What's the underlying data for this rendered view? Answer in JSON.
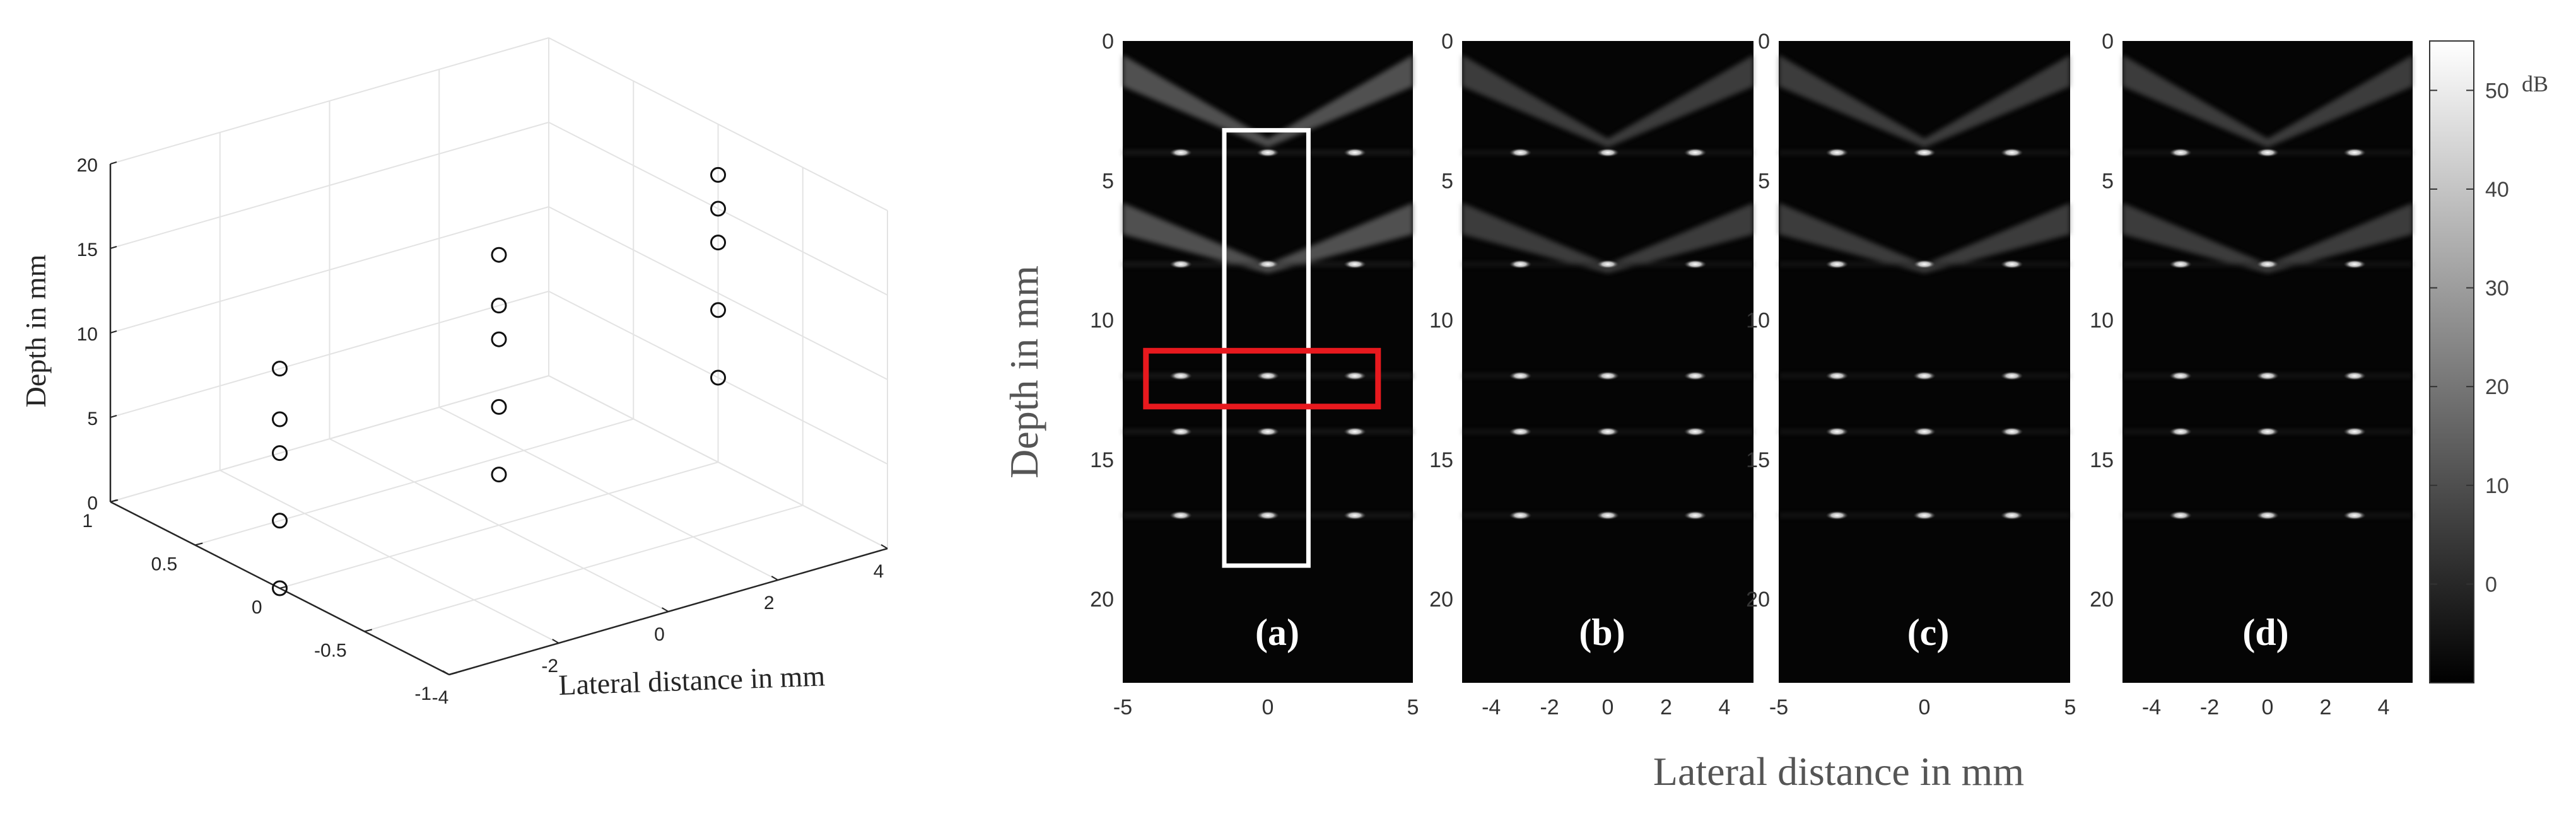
{
  "figure": {
    "scatter3d": {
      "type": "scatter",
      "zlabel": "Depth in mm",
      "xlabel": "Lateral distance in mm",
      "z_ticks": [
        "0",
        "5",
        "10",
        "15",
        "20"
      ],
      "y_ticks": [
        "1",
        "0.5",
        "0",
        "-0.5",
        "-1"
      ],
      "x_ticks": [
        "-4",
        "-2",
        "0",
        "2",
        "4"
      ],
      "xlim": [
        -4,
        4
      ],
      "ylim": [
        -1,
        1
      ],
      "zlim": [
        0,
        20
      ],
      "grid": true
    },
    "image_panels": {
      "shared_ylabel": "Depth in mm",
      "shared_xlabel": "Lateral distance in mm",
      "depth_ticks": [
        "0",
        "5",
        "10",
        "15",
        "20"
      ],
      "panels": [
        {
          "label": "(a)",
          "x_ticks": [
            "-5",
            "0",
            "5"
          ],
          "xlim": [
            -5,
            5
          ]
        },
        {
          "label": "(b)",
          "x_ticks": [
            "-4",
            "-2",
            "0",
            "2",
            "4"
          ],
          "xlim": [
            -5,
            5
          ]
        },
        {
          "label": "(c)",
          "x_ticks": [
            "-5",
            "0",
            "5"
          ],
          "xlim": [
            -5,
            5
          ]
        },
        {
          "label": "(d)",
          "x_ticks": [
            "-4",
            "-2",
            "0",
            "2",
            "4"
          ],
          "xlim": [
            -5,
            5
          ]
        }
      ]
    },
    "colorbar": {
      "unit": "dB",
      "ticks": [
        "50",
        "40",
        "30",
        "20",
        "10",
        "0"
      ],
      "range": [
        -10,
        55
      ]
    },
    "colors": {
      "red_box": "#e8191e",
      "white_box": "#ffffff",
      "image_background": "#050505"
    }
  },
  "chart_data": [
    {
      "type": "scatter",
      "zlabel": "Depth in mm",
      "xlabel": "Lateral distance in mm",
      "xlim": [
        -4,
        4
      ],
      "ylim": [
        -1,
        1
      ],
      "zlim": [
        0,
        20
      ],
      "series": [
        {
          "points": [
            {
              "x": -4,
              "y": 0,
              "z": 13
            },
            {
              "x": -4,
              "y": 0,
              "z": 10
            },
            {
              "x": -4,
              "y": 0,
              "z": 8
            },
            {
              "x": -4,
              "y": 0,
              "z": 4
            },
            {
              "x": -4,
              "y": 0,
              "z": 0
            },
            {
              "x": 0,
              "y": 0,
              "z": 16
            },
            {
              "x": 0,
              "y": 0,
              "z": 13
            },
            {
              "x": 0,
              "y": 0,
              "z": 11
            },
            {
              "x": 0,
              "y": 0,
              "z": 7
            },
            {
              "x": 0,
              "y": 0,
              "z": 3
            },
            {
              "x": 4,
              "y": 0,
              "z": 17
            },
            {
              "x": 4,
              "y": 0,
              "z": 15
            },
            {
              "x": 4,
              "y": 0,
              "z": 13
            },
            {
              "x": 4,
              "y": 0,
              "z": 9
            },
            {
              "x": 4,
              "y": 0,
              "z": 5
            }
          ]
        }
      ]
    },
    {
      "type": "heatmap",
      "ylabel": "Depth in mm",
      "xlabel": "Lateral distance in mm",
      "xlim": [
        -5,
        5
      ],
      "ylim": [
        0,
        23
      ],
      "panels": [
        "(a)",
        "(b)",
        "(c)",
        "(d)"
      ],
      "point_targets_mm": [
        {
          "x": -3,
          "depth": 4
        },
        {
          "x": 0,
          "depth": 4
        },
        {
          "x": 3,
          "depth": 4
        },
        {
          "x": -3,
          "depth": 8
        },
        {
          "x": 0,
          "depth": 8
        },
        {
          "x": 3,
          "depth": 8
        },
        {
          "x": -3,
          "depth": 12
        },
        {
          "x": 0,
          "depth": 12
        },
        {
          "x": 3,
          "depth": 12
        },
        {
          "x": -3,
          "depth": 14
        },
        {
          "x": 0,
          "depth": 14
        },
        {
          "x": 3,
          "depth": 14
        },
        {
          "x": -3,
          "depth": 17
        },
        {
          "x": 0,
          "depth": 17
        },
        {
          "x": 3,
          "depth": 17
        }
      ],
      "colorbar": {
        "unit": "dB",
        "range": [
          -10,
          55
        ]
      }
    }
  ]
}
